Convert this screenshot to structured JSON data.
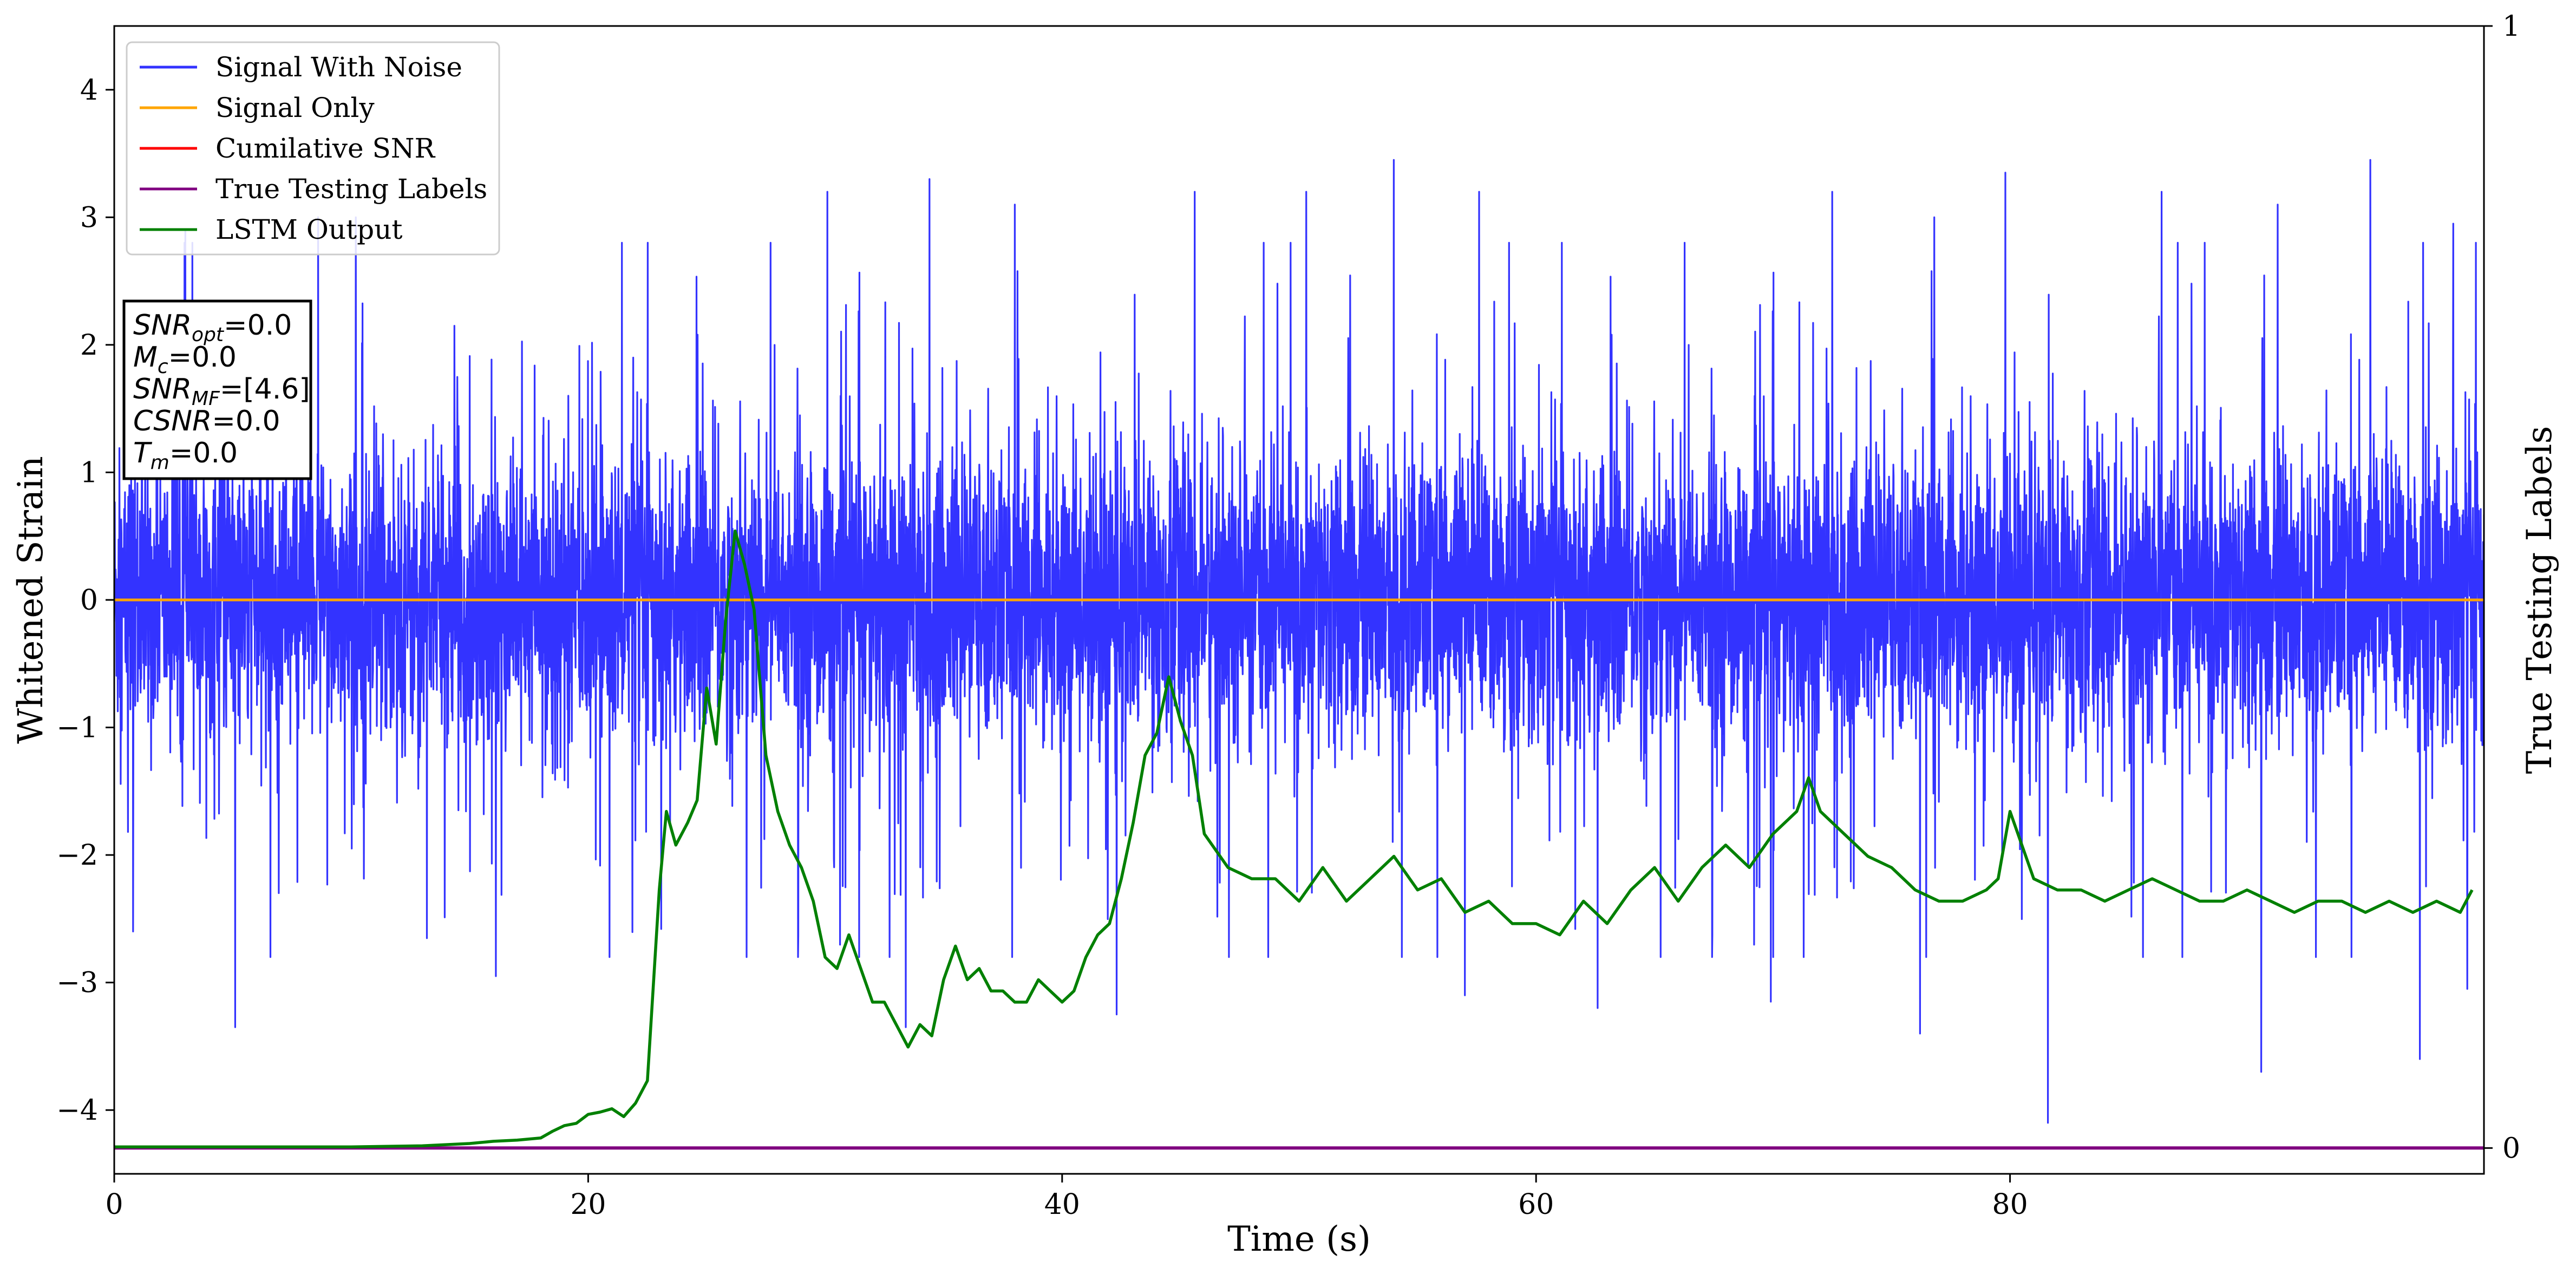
{
  "chart_data": {
    "type": "line",
    "title": "",
    "xlabel": "Time (s)",
    "ylabel": "Whitened Strain",
    "ylabel_right": "True Testing Labels",
    "xlim": [
      0,
      100
    ],
    "ylim": [
      -4.5,
      4.5
    ],
    "ylim_right": [
      -0.023,
      1
    ],
    "x_ticks": [
      0,
      20,
      40,
      60,
      80
    ],
    "y_ticks": [
      -4,
      -3,
      -2,
      -1,
      0,
      1,
      2,
      3,
      4
    ],
    "y_ticks_right": [
      0,
      1
    ],
    "grid": false,
    "legend_position": "upper-left",
    "series": [
      {
        "name": "Signal With Noise",
        "axis": "left",
        "color": "#3333ff",
        "representation": "dense noise trace, approx. range from about -4.1 to 3.5",
        "x_range": [
          0,
          100
        ],
        "band": [
          -1.3,
          1.3
        ],
        "peaks": [
          [
            3.0,
            2.9
          ],
          [
            8.6,
            3.0
          ],
          [
            10.2,
            3.0
          ],
          [
            30.1,
            3.2
          ],
          [
            34.4,
            3.3
          ],
          [
            38.0,
            3.1
          ],
          [
            45.6,
            3.2
          ],
          [
            50.3,
            3.2
          ],
          [
            54.0,
            3.45
          ],
          [
            57.6,
            3.2
          ],
          [
            72.5,
            3.2
          ],
          [
            76.8,
            3.0
          ],
          [
            79.8,
            3.35
          ],
          [
            86.4,
            3.2
          ],
          [
            91.3,
            3.1
          ],
          [
            95.2,
            3.45
          ],
          [
            98.7,
            2.95
          ]
        ],
        "troughs": [
          [
            0.8,
            -2.6
          ],
          [
            5.1,
            -3.35
          ],
          [
            16.1,
            -2.95
          ],
          [
            33.4,
            -3.35
          ],
          [
            42.3,
            -3.25
          ],
          [
            57.0,
            -3.1
          ],
          [
            62.6,
            -3.2
          ],
          [
            69.9,
            -3.15
          ],
          [
            76.2,
            -3.4
          ],
          [
            81.6,
            -4.1
          ],
          [
            90.6,
            -3.7
          ],
          [
            97.3,
            -3.6
          ],
          [
            99.3,
            -3.05
          ]
        ]
      },
      {
        "name": "Signal Only",
        "axis": "left",
        "color": "#ffa500",
        "x": [
          0,
          100
        ],
        "y": [
          0,
          0
        ]
      },
      {
        "name": "Cumilative SNR",
        "axis": "right",
        "color": "#ff0000",
        "x": [
          0,
          100
        ],
        "y": [
          0,
          0
        ]
      },
      {
        "name": "True Testing Labels",
        "axis": "right",
        "color": "#800080",
        "x": [
          0,
          100
        ],
        "y": [
          0,
          0
        ]
      },
      {
        "name": "LSTM Output",
        "axis": "right",
        "color": "#008000",
        "x": [
          0,
          5,
          10,
          13,
          15,
          16,
          17,
          18,
          18.5,
          19,
          19.5,
          20,
          20.5,
          21,
          21.5,
          22,
          22.5,
          23,
          23.3,
          23.7,
          24.2,
          24.6,
          25,
          25.4,
          25.8,
          26.2,
          26.6,
          27,
          27.5,
          28,
          28.5,
          29,
          29.5,
          30,
          30.5,
          31,
          31.5,
          32,
          32.5,
          33,
          33.5,
          34,
          34.5,
          35,
          35.5,
          36,
          36.5,
          37,
          37.5,
          38,
          38.5,
          39,
          39.5,
          40,
          40.5,
          41,
          41.5,
          42,
          42.5,
          43,
          43.5,
          44,
          44.5,
          45,
          45.5,
          46,
          47,
          48,
          49,
          50,
          51,
          52,
          53,
          54,
          55,
          56,
          57,
          58,
          59,
          60,
          61,
          62,
          63,
          64,
          65,
          66,
          67,
          68,
          69,
          70,
          70.5,
          71,
          71.5,
          72,
          73,
          74,
          75,
          76,
          77,
          78,
          79,
          79.5,
          80,
          80.5,
          81,
          82,
          83,
          84,
          85,
          86,
          87,
          88,
          89,
          90,
          91,
          92,
          93,
          94,
          95,
          96,
          97,
          98,
          99,
          99.5
        ],
        "y": [
          0.001,
          0.001,
          0.001,
          0.002,
          0.004,
          0.006,
          0.007,
          0.009,
          0.015,
          0.02,
          0.022,
          0.03,
          0.032,
          0.035,
          0.028,
          0.04,
          0.06,
          0.23,
          0.3,
          0.27,
          0.29,
          0.31,
          0.41,
          0.36,
          0.47,
          0.55,
          0.52,
          0.48,
          0.35,
          0.3,
          0.27,
          0.25,
          0.22,
          0.17,
          0.16,
          0.19,
          0.16,
          0.13,
          0.13,
          0.11,
          0.09,
          0.11,
          0.1,
          0.15,
          0.18,
          0.15,
          0.16,
          0.14,
          0.14,
          0.13,
          0.13,
          0.15,
          0.14,
          0.13,
          0.14,
          0.17,
          0.19,
          0.2,
          0.24,
          0.29,
          0.35,
          0.37,
          0.42,
          0.38,
          0.35,
          0.28,
          0.25,
          0.24,
          0.24,
          0.22,
          0.25,
          0.22,
          0.24,
          0.26,
          0.23,
          0.24,
          0.21,
          0.22,
          0.2,
          0.2,
          0.19,
          0.22,
          0.2,
          0.23,
          0.25,
          0.22,
          0.25,
          0.27,
          0.25,
          0.28,
          0.29,
          0.3,
          0.33,
          0.3,
          0.28,
          0.26,
          0.25,
          0.23,
          0.22,
          0.22,
          0.23,
          0.24,
          0.3,
          0.27,
          0.24,
          0.23,
          0.23,
          0.22,
          0.23,
          0.24,
          0.23,
          0.22,
          0.22,
          0.23,
          0.22,
          0.21,
          0.22,
          0.22,
          0.21,
          0.22,
          0.21,
          0.22,
          0.21,
          0.23
        ]
      }
    ],
    "annotation_box": [
      {
        "label": "SNR",
        "sub": "opt",
        "value": "=0.0"
      },
      {
        "label": "M",
        "sub": "c",
        "value": "=0.0"
      },
      {
        "label": "SNR",
        "sub": "MF",
        "value": "=[4.6]"
      },
      {
        "label": "CSNR",
        "sub": "",
        "value": "=0.0"
      },
      {
        "label": "T",
        "sub": "m",
        "value": "=0.0"
      }
    ]
  }
}
